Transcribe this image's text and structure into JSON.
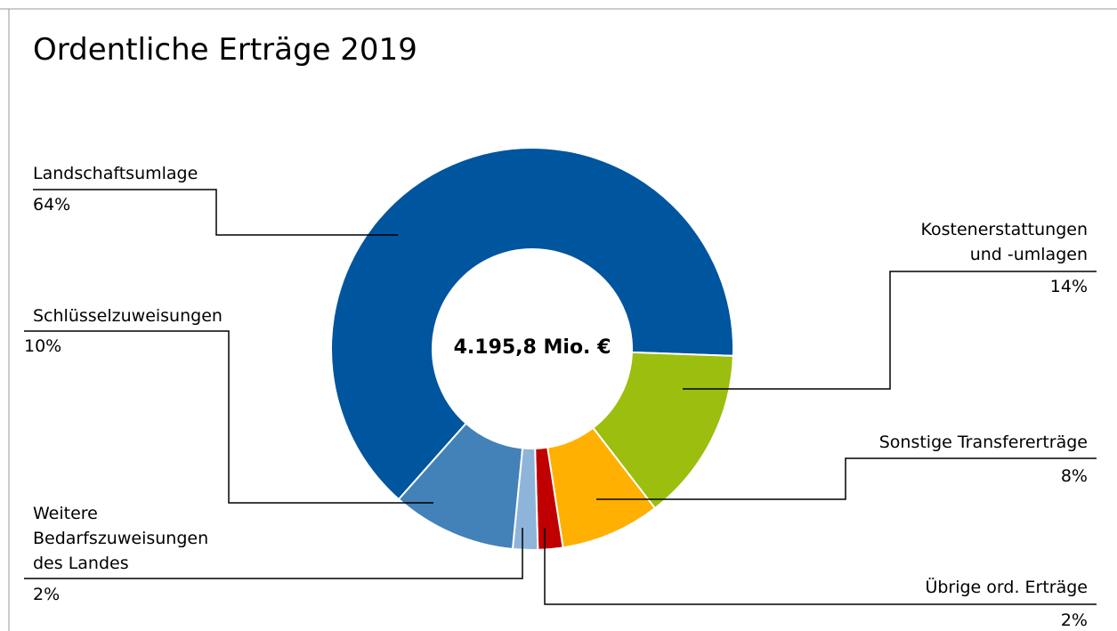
{
  "chart_data": {
    "type": "donut",
    "title": "Ordentliche Erträge 2019",
    "center_label": "4.195,8 Mio. €",
    "categories": [
      "Landschaftsumlage",
      "Kostenerstattungen\nund -umlagen",
      "Sonstige Transfererträge",
      "Übrige ord. Erträge",
      "Weitere\nBedarfszuweisungen\ndes Landes",
      "Schlüsselzuweisungen"
    ],
    "values": [
      64,
      14,
      8,
      2,
      2,
      10
    ],
    "value_labels": [
      "64%",
      "14%",
      "8%",
      "2%",
      "2%",
      "10%"
    ],
    "colors": [
      "#00559f",
      "#9bbe0f",
      "#ffb000",
      "#c00000",
      "#8fb4da",
      "#4282b8"
    ]
  }
}
